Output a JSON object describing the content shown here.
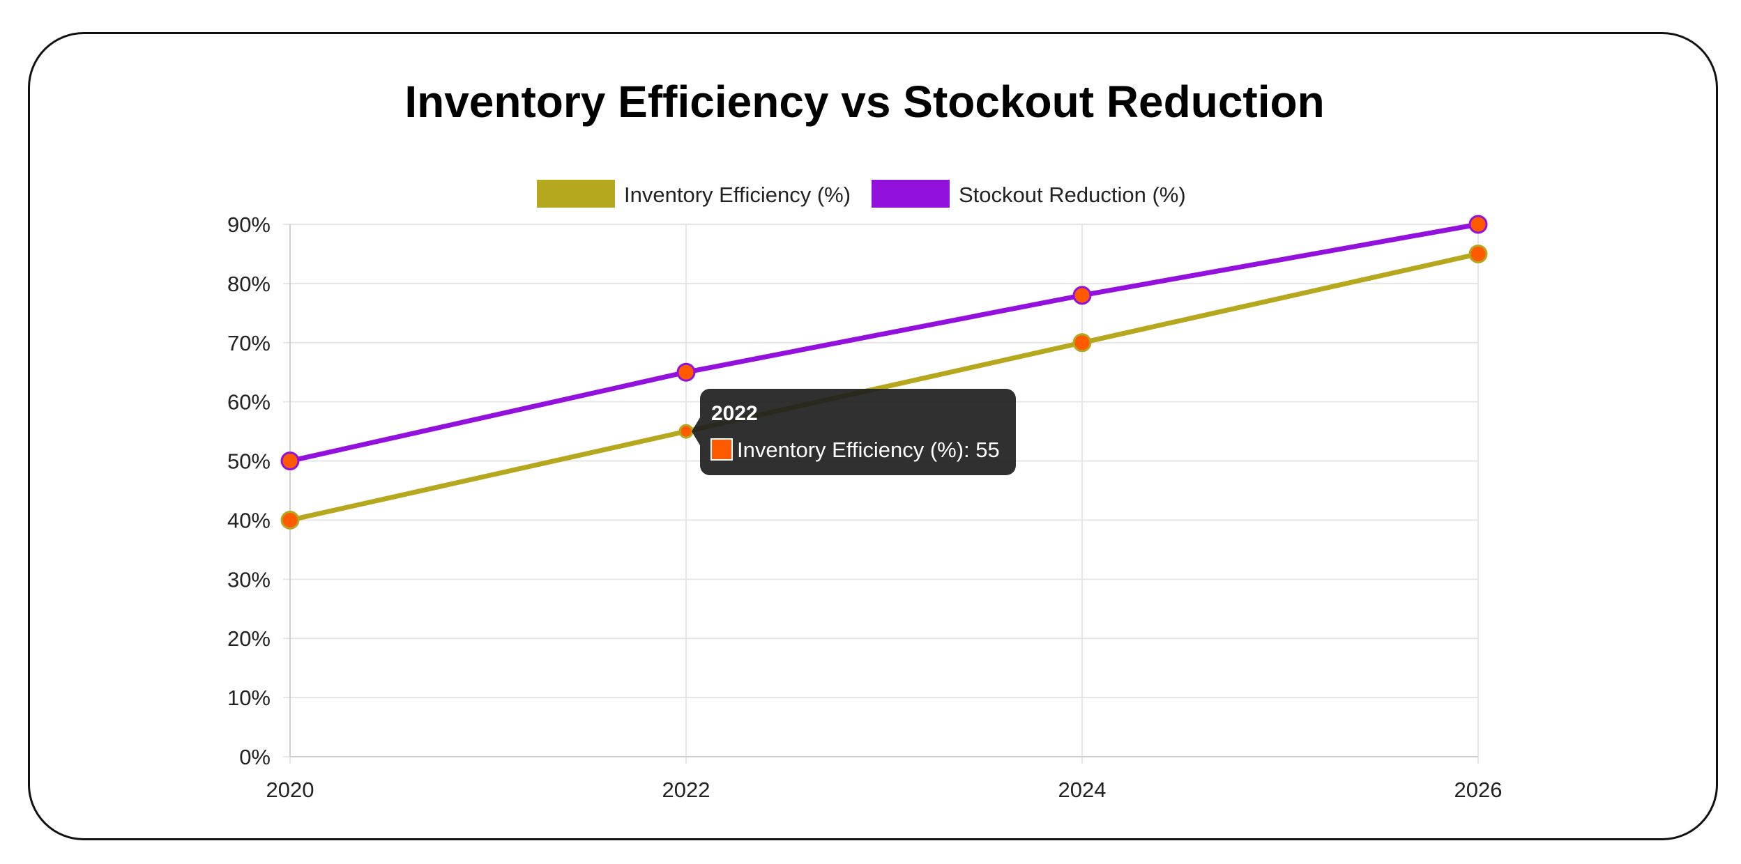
{
  "chart_data": {
    "type": "line",
    "title": "Inventory Efficiency vs Stockout Reduction",
    "categories": [
      "2020",
      "2022",
      "2024",
      "2026"
    ],
    "series": [
      {
        "name": "Inventory Efficiency (%)",
        "values": [
          40,
          55,
          70,
          85
        ],
        "color": "#b5a81f",
        "point_color": "#ff5a00"
      },
      {
        "name": "Stockout Reduction (%)",
        "values": [
          50,
          65,
          78,
          90
        ],
        "color": "#9311dd",
        "point_color": "#ff5a00"
      }
    ],
    "ylim": [
      0,
      90
    ],
    "ytick_labels": [
      "0%",
      "10%",
      "20%",
      "30%",
      "40%",
      "50%",
      "60%",
      "70%",
      "80%",
      "90%"
    ],
    "grid": true,
    "legend_position": "top",
    "tooltip": {
      "title": "2022",
      "series_index": 0,
      "point_index": 1,
      "label": "Inventory Efficiency (%): 55",
      "swatch_color": "#ff5a00"
    }
  }
}
